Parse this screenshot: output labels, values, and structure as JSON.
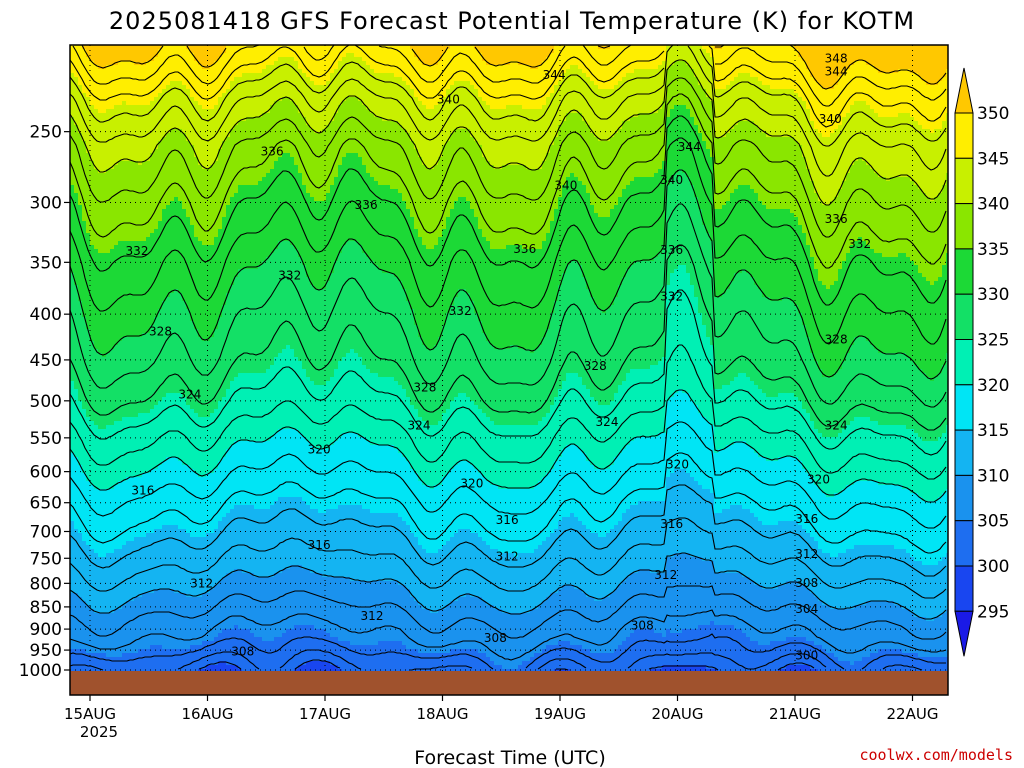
{
  "chart_data": {
    "type": "contour-filled time-height cross section",
    "title": "2025081418 GFS Forecast Potential Temperature (K) for KOTM",
    "xlabel": "Forecast Time (UTC)",
    "ylabel": "",
    "y_axis": {
      "unit": "hPa",
      "scale": "log-pressure, inverted",
      "range": [
        1000,
        200
      ],
      "ticks": [
        250,
        300,
        350,
        400,
        450,
        500,
        550,
        600,
        650,
        700,
        750,
        800,
        850,
        900,
        950,
        1000
      ],
      "tick_labels": [
        "250",
        "300",
        "350",
        "400",
        "450",
        "500",
        "550",
        "600",
        "650",
        "700",
        "750",
        "800",
        "850",
        "900",
        "950",
        "1000"
      ]
    },
    "x_axis": {
      "tick_labels": [
        "15AUG",
        "16AUG",
        "17AUG",
        "18AUG",
        "19AUG",
        "20AUG",
        "21AUG",
        "22AUG"
      ],
      "year_label": "2025",
      "range_days": [
        0,
        7.4
      ]
    },
    "grid": true,
    "colorbar": {
      "placement": "right",
      "levels": [
        "295",
        "300",
        "305",
        "310",
        "315",
        "320",
        "325",
        "330",
        "335",
        "340",
        "345",
        "350"
      ],
      "colors": [
        "#1a1ae6",
        "#1946f0",
        "#1e6ef0",
        "#1a92ee",
        "#14b4f2",
        "#00e5f5",
        "#00f0b4",
        "#13e066",
        "#1cd936",
        "#8ae600",
        "#c8f000",
        "#ffee00",
        "#ffc800"
      ]
    },
    "surface_color": "#a0522d",
    "contour_labels": [
      {
        "text": "348",
        "day": 6.35,
        "p": 207
      },
      {
        "text": "344",
        "day": 3.95,
        "p": 216
      },
      {
        "text": "344",
        "day": 6.35,
        "p": 214
      },
      {
        "text": "340",
        "day": 3.05,
        "p": 230
      },
      {
        "text": "340",
        "day": 6.3,
        "p": 242
      },
      {
        "text": "336",
        "day": 1.55,
        "p": 263
      },
      {
        "text": "344",
        "day": 5.1,
        "p": 260
      },
      {
        "text": "340",
        "day": 4.95,
        "p": 283
      },
      {
        "text": "340",
        "day": 4.05,
        "p": 287
      },
      {
        "text": "336",
        "day": 2.35,
        "p": 302
      },
      {
        "text": "336",
        "day": 6.35,
        "p": 313
      },
      {
        "text": "332",
        "day": 0.4,
        "p": 340
      },
      {
        "text": "336",
        "day": 3.7,
        "p": 338
      },
      {
        "text": "336",
        "day": 4.95,
        "p": 339
      },
      {
        "text": "332",
        "day": 6.55,
        "p": 334
      },
      {
        "text": "332",
        "day": 1.7,
        "p": 362
      },
      {
        "text": "332",
        "day": 4.95,
        "p": 382
      },
      {
        "text": "332",
        "day": 3.15,
        "p": 397
      },
      {
        "text": "328",
        "day": 0.6,
        "p": 418
      },
      {
        "text": "328",
        "day": 6.35,
        "p": 427
      },
      {
        "text": "328",
        "day": 4.3,
        "p": 457
      },
      {
        "text": "328",
        "day": 2.85,
        "p": 483
      },
      {
        "text": "324",
        "day": 0.85,
        "p": 492
      },
      {
        "text": "324",
        "day": 2.8,
        "p": 533
      },
      {
        "text": "324",
        "day": 4.4,
        "p": 528
      },
      {
        "text": "324",
        "day": 6.35,
        "p": 533
      },
      {
        "text": "320",
        "day": 1.95,
        "p": 567
      },
      {
        "text": "320",
        "day": 5.0,
        "p": 589
      },
      {
        "text": "320",
        "day": 6.2,
        "p": 612
      },
      {
        "text": "320",
        "day": 3.25,
        "p": 619
      },
      {
        "text": "316",
        "day": 0.45,
        "p": 630
      },
      {
        "text": "316",
        "day": 3.55,
        "p": 680
      },
      {
        "text": "316",
        "day": 4.95,
        "p": 687
      },
      {
        "text": "316",
        "day": 6.1,
        "p": 678
      },
      {
        "text": "316",
        "day": 1.95,
        "p": 725
      },
      {
        "text": "312",
        "day": 3.55,
        "p": 747
      },
      {
        "text": "312",
        "day": 6.1,
        "p": 742
      },
      {
        "text": "312",
        "day": 0.95,
        "p": 800
      },
      {
        "text": "312",
        "day": 4.9,
        "p": 783
      },
      {
        "text": "308",
        "day": 6.1,
        "p": 799
      },
      {
        "text": "304",
        "day": 6.1,
        "p": 855
      },
      {
        "text": "312",
        "day": 2.4,
        "p": 870
      },
      {
        "text": "308",
        "day": 4.7,
        "p": 892
      },
      {
        "text": "308",
        "day": 3.45,
        "p": 921
      },
      {
        "text": "308",
        "day": 1.3,
        "p": 953
      },
      {
        "text": "300",
        "day": 6.1,
        "p": 963
      }
    ],
    "colorbar_tick_labels": [
      "350",
      "345",
      "340",
      "335",
      "330",
      "325",
      "320",
      "315",
      "310",
      "305",
      "300",
      "295"
    ]
  },
  "credit": "coolwx.com/models"
}
